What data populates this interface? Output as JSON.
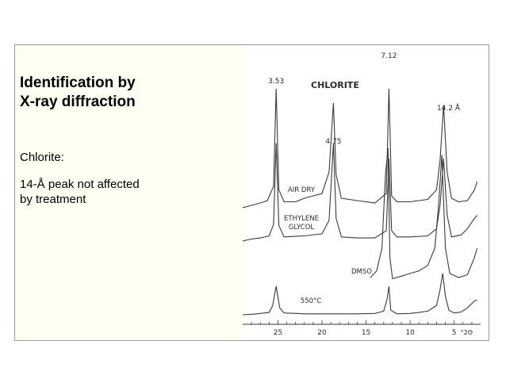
{
  "slide": {
    "title": "Identification  by\nX-ray diffraction",
    "mineral_label": "Chlorite:",
    "note": "14-Å peak not affected\nby treatment"
  },
  "chart_data": {
    "type": "line",
    "title": "CHLORITE",
    "xlabel": "°2Θ",
    "xlim": [
      29,
      2
    ],
    "x_ticks": [
      25,
      20,
      15,
      10,
      5
    ],
    "x_tick_labels": [
      "25",
      "20",
      "15",
      "10",
      "5"
    ],
    "x_unit_label": "°2Θ",
    "grid": false,
    "curve_labels_on_plot": true,
    "series": [
      {
        "name": "AIR DRY",
        "baseline": 0.0,
        "points": [
          [
            29.0,
            0.0
          ],
          [
            28.0,
            0.02
          ],
          [
            27.0,
            0.04
          ],
          [
            26.2,
            0.06
          ],
          [
            25.5,
            0.18
          ],
          [
            25.2,
            1.0
          ],
          [
            24.9,
            0.15
          ],
          [
            24.3,
            0.05
          ],
          [
            23.0,
            0.05
          ],
          [
            22.0,
            0.08
          ],
          [
            21.0,
            0.1
          ],
          [
            20.0,
            0.12
          ],
          [
            19.2,
            0.3
          ],
          [
            18.7,
            0.88
          ],
          [
            18.4,
            0.28
          ],
          [
            17.8,
            0.08
          ],
          [
            16.0,
            0.06
          ],
          [
            14.0,
            0.04
          ],
          [
            12.7,
            0.12
          ],
          [
            12.4,
            1.0
          ],
          [
            12.1,
            0.1
          ],
          [
            11.5,
            0.05
          ],
          [
            10.0,
            0.05
          ],
          [
            9.0,
            0.06
          ],
          [
            8.0,
            0.07
          ],
          [
            7.0,
            0.15
          ],
          [
            6.6,
            0.4
          ],
          [
            6.2,
            0.86
          ],
          [
            5.8,
            0.3
          ],
          [
            5.3,
            0.08
          ],
          [
            4.5,
            0.05
          ],
          [
            3.5,
            0.06
          ],
          [
            2.7,
            0.15
          ],
          [
            2.4,
            0.22
          ]
        ]
      },
      {
        "name": "ETHYLENE GLYCOL",
        "baseline": 0.0,
        "points": [
          [
            29.0,
            0.0
          ],
          [
            28.0,
            0.02
          ],
          [
            27.0,
            0.03
          ],
          [
            26.0,
            0.05
          ],
          [
            25.5,
            0.16
          ],
          [
            25.2,
            0.95
          ],
          [
            24.9,
            0.15
          ],
          [
            24.3,
            0.04
          ],
          [
            22.0,
            0.05
          ],
          [
            20.0,
            0.07
          ],
          [
            19.2,
            0.2
          ],
          [
            18.7,
            0.95
          ],
          [
            18.4,
            0.22
          ],
          [
            17.8,
            0.04
          ],
          [
            16.0,
            0.03
          ],
          [
            14.0,
            0.03
          ],
          [
            12.7,
            0.1
          ],
          [
            12.4,
            0.8
          ],
          [
            12.1,
            0.1
          ],
          [
            11.5,
            0.04
          ],
          [
            10.0,
            0.04
          ],
          [
            8.0,
            0.05
          ],
          [
            7.0,
            0.12
          ],
          [
            6.6,
            0.35
          ],
          [
            6.2,
            0.8
          ],
          [
            5.8,
            0.25
          ],
          [
            5.3,
            0.04
          ],
          [
            4.2,
            0.06
          ],
          [
            3.5,
            0.12
          ],
          [
            2.7,
            0.22
          ],
          [
            2.4,
            0.25
          ]
        ]
      },
      {
        "name": "DMSO",
        "baseline": 0.0,
        "points": [
          [
            14.5,
            0.03
          ],
          [
            13.8,
            0.08
          ],
          [
            13.2,
            0.25
          ],
          [
            12.8,
            0.8
          ],
          [
            12.5,
            1.0
          ],
          [
            12.3,
            0.18
          ],
          [
            12.0,
            0.02
          ],
          [
            11.0,
            0.04
          ],
          [
            10.0,
            0.06
          ],
          [
            9.0,
            0.08
          ],
          [
            8.0,
            0.12
          ],
          [
            7.2,
            0.25
          ],
          [
            6.8,
            0.55
          ],
          [
            6.4,
            0.95
          ],
          [
            6.0,
            0.25
          ],
          [
            5.5,
            0.06
          ],
          [
            4.5,
            0.03
          ],
          [
            3.5,
            0.05
          ],
          [
            2.7,
            0.18
          ],
          [
            2.4,
            0.25
          ]
        ]
      },
      {
        "name": "550°C",
        "baseline": 0.0,
        "points": [
          [
            29.0,
            0.0
          ],
          [
            28.0,
            0.01
          ],
          [
            27.0,
            0.03
          ],
          [
            26.0,
            0.05
          ],
          [
            25.6,
            0.2
          ],
          [
            25.2,
            0.62
          ],
          [
            24.8,
            0.15
          ],
          [
            24.3,
            0.04
          ],
          [
            22.0,
            0.02
          ],
          [
            20.0,
            0.02
          ],
          [
            18.0,
            0.02
          ],
          [
            16.0,
            0.02
          ],
          [
            14.0,
            0.03
          ],
          [
            13.0,
            0.08
          ],
          [
            12.6,
            0.35
          ],
          [
            12.4,
            0.62
          ],
          [
            12.2,
            0.1
          ],
          [
            11.5,
            0.02
          ],
          [
            10.0,
            0.03
          ],
          [
            9.0,
            0.05
          ],
          [
            8.0,
            0.08
          ],
          [
            7.0,
            0.2
          ],
          [
            6.6,
            0.55
          ],
          [
            6.3,
            0.9
          ],
          [
            6.0,
            0.4
          ],
          [
            5.6,
            0.1
          ],
          [
            5.0,
            0.04
          ],
          [
            4.2,
            0.06
          ],
          [
            3.5,
            0.15
          ],
          [
            2.7,
            0.3
          ],
          [
            2.4,
            0.32
          ]
        ]
      }
    ],
    "peak_labels": [
      "3.53",
      "4.75",
      "7.12",
      "14.2 Å"
    ]
  }
}
